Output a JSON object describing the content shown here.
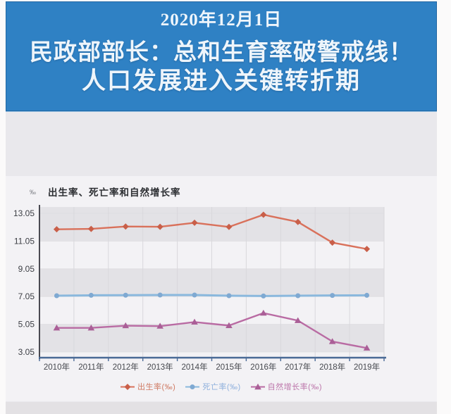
{
  "page": {
    "background": "#fbfafa",
    "margin_color": "#ffffff"
  },
  "banner": {
    "date": "2020年12月1日",
    "headline_line1": "民政部部长：总和生育率破警戒线！",
    "headline_line2": "人口发展进入关键转折期",
    "bg_color": "#2f81c4",
    "border_color": "#2066a3",
    "text_color": "#eef5fb"
  },
  "chart_data": {
    "type": "line",
    "title": "出生率、死亡率和自然增长率",
    "unit_label": "‰",
    "categories": [
      "2010年",
      "2011年",
      "2012年",
      "2013年",
      "2014年",
      "2015年",
      "2016年",
      "2017年",
      "2018年",
      "2019年"
    ],
    "series": [
      {
        "name": "出生率(‰)",
        "marker": "diamond",
        "line_color": "#d9715b",
        "marker_color": "#c95f49",
        "text_color": "#cf7a63",
        "values": [
          11.9,
          11.93,
          12.1,
          12.08,
          12.37,
          12.07,
          12.95,
          12.43,
          10.94,
          10.48
        ]
      },
      {
        "name": "死亡率(‰)",
        "marker": "circle",
        "line_color": "#8ab8dd",
        "marker_color": "#7fa9d2",
        "text_color": "#8fb0dd",
        "values": [
          7.11,
          7.14,
          7.15,
          7.16,
          7.16,
          7.11,
          7.09,
          7.11,
          7.13,
          7.14
        ]
      },
      {
        "name": "自然增长率(‰)",
        "marker": "triangle",
        "line_color": "#b96ba3",
        "marker_color": "#aa5f97",
        "text_color": "#bd77ab",
        "values": [
          4.79,
          4.79,
          4.95,
          4.92,
          5.21,
          4.96,
          5.86,
          5.32,
          3.81,
          3.34
        ]
      }
    ],
    "yticks": [
      13.05,
      11.05,
      9.05,
      7.05,
      5.05,
      3.05
    ],
    "ylim": [
      3.05,
      13.05
    ],
    "grid": true,
    "legend_position": "bottom",
    "band_colors": [
      "#e3e2e6",
      "#f3f2f5"
    ],
    "gridline_color": "#d9d8dc",
    "yaxis_color": "#4a4a52",
    "xaxis_color": "#4a6a96",
    "tick_label_color": "#3c3e44"
  }
}
